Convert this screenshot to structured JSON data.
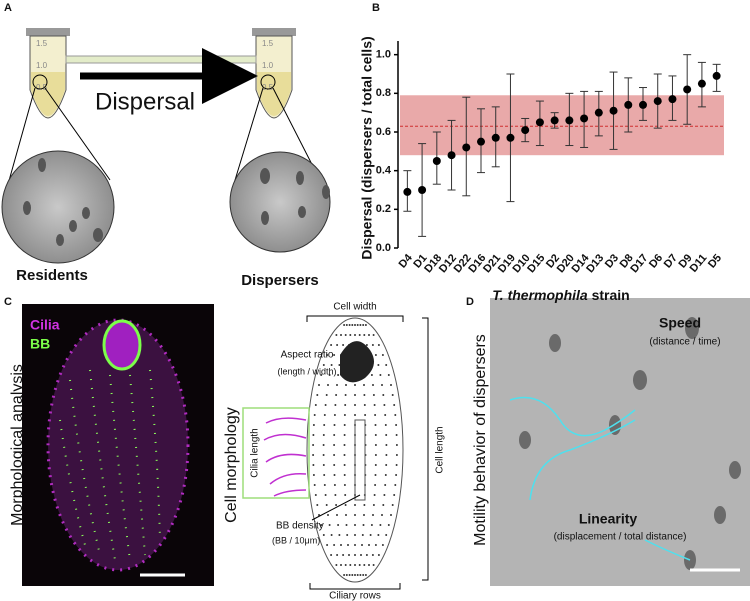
{
  "figure": {
    "panel_a": {
      "letter": "A",
      "arrow_label": "Dispersal",
      "left_label": "Residents",
      "right_label": "Dispersers",
      "tube_marks": [
        "1.5",
        "1.0",
        "0.5"
      ]
    },
    "panel_c": {
      "letter": "C",
      "stain_1": "Cilia",
      "stain_2": "BB",
      "side_label": "Morphological analysis",
      "diagram_title": "Cell morphology",
      "cell_width": "Cell width",
      "aspect_ratio": "Aspect ratio",
      "aspect_ratio_unit": "(length / width)",
      "cilia_length": "Cilia length",
      "cell_length": "Cell length",
      "bb_density": "BB density",
      "bb_density_unit": "(BB / 10μm)",
      "ciliary_rows": "Ciliary rows"
    },
    "panel_d": {
      "letter": "D",
      "side_label": "Motility behavior of dispersers",
      "speed": "Speed",
      "speed_unit": "(distance / time)",
      "linearity": "Linearity",
      "linearity_unit": "(displacement / total distance)"
    }
  },
  "chart_data": {
    "type": "dot",
    "letter": "B",
    "ylabel": "Dispersal (dispersers / total cells)",
    "xlabel": [
      "T. thermophila",
      "strain"
    ],
    "categories": [
      "D4",
      "D1",
      "D18",
      "D12",
      "D22",
      "D16",
      "D21",
      "D19",
      "D10",
      "D15",
      "D2",
      "D20",
      "D14",
      "D13",
      "D3",
      "D8",
      "D17",
      "D6",
      "D7",
      "D9",
      "D11",
      "D5"
    ],
    "values": [
      0.29,
      0.3,
      0.45,
      0.48,
      0.52,
      0.55,
      0.57,
      0.57,
      0.61,
      0.65,
      0.66,
      0.66,
      0.67,
      0.7,
      0.71,
      0.74,
      0.74,
      0.76,
      0.77,
      0.82,
      0.85,
      0.89
    ],
    "error_low": [
      0.19,
      0.06,
      0.33,
      0.3,
      0.27,
      0.39,
      0.42,
      0.24,
      0.55,
      0.53,
      0.62,
      0.53,
      0.52,
      0.58,
      0.51,
      0.6,
      0.66,
      0.62,
      0.66,
      0.64,
      0.73,
      0.81
    ],
    "error_high": [
      0.4,
      0.54,
      0.6,
      0.66,
      0.78,
      0.72,
      0.73,
      0.9,
      0.67,
      0.76,
      0.7,
      0.8,
      0.81,
      0.81,
      0.91,
      0.88,
      0.83,
      0.9,
      0.89,
      1.0,
      0.96,
      0.95
    ],
    "color": "#000000",
    "mean_line": 0.63,
    "mean_color": "#d03030",
    "band": [
      0.48,
      0.79
    ],
    "band_color": "#e59a9a",
    "ylim": [
      0,
      1.05
    ],
    "yticks": [
      {
        "value": 0,
        "label": "0.0"
      },
      0.2,
      0.4,
      0.6,
      0.8,
      {
        "value": 1,
        "label": "1.0"
      }
    ]
  }
}
